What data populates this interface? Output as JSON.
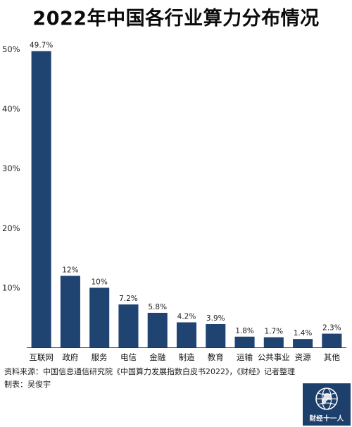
{
  "chart_data": {
    "type": "bar",
    "title": "2022年中国各行业算力分布情况",
    "categories": [
      "互联网",
      "政府",
      "服务",
      "电信",
      "金融",
      "制造",
      "教育",
      "运输",
      "公共事业",
      "资源",
      "其他"
    ],
    "values": [
      49.7,
      12,
      10,
      7.2,
      5.8,
      4.2,
      3.9,
      1.8,
      1.7,
      1.4,
      2.3
    ],
    "value_labels": [
      "49.7%",
      "12%",
      "10%",
      "7.2%",
      "5.8%",
      "4.2%",
      "3.9%",
      "1.8%",
      "1.7%",
      "1.4%",
      "2.3%"
    ],
    "y_ticks": [
      10,
      20,
      30,
      40,
      50
    ],
    "y_tick_labels": [
      "10%",
      "20%",
      "30%",
      "40%",
      "50%"
    ],
    "ylim": [
      0,
      50
    ],
    "grid": false,
    "bar_color": "#1f4472"
  },
  "footer": {
    "source": "资料来源：中国信息通信研究院《中国算力发展指数白皮书2022》，《财经》记者整理",
    "credit": "制表：吴俊宇"
  },
  "logo": {
    "text": "财经十一人",
    "icon": "globe-icon",
    "color": "#1c3f6b"
  }
}
